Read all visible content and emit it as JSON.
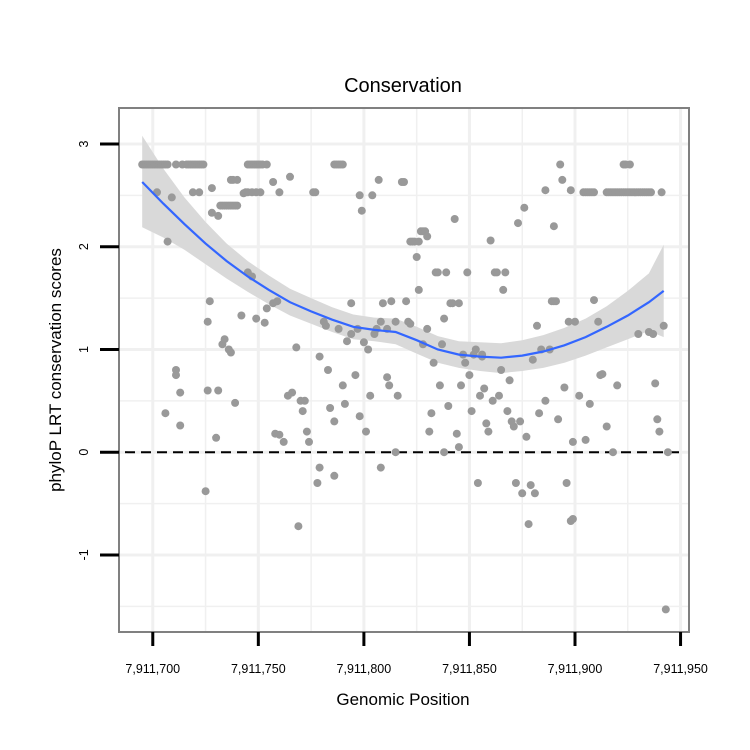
{
  "chart_data": {
    "type": "scatter",
    "title": "Conservation",
    "xlabel": "Genomic Position",
    "ylabel": "phyloP LRT conservation scores",
    "xlim": [
      7911684,
      7911954
    ],
    "ylim": [
      -1.75,
      3.35
    ],
    "xticks": [
      7911700,
      7911750,
      7911800,
      7911850,
      7911900,
      7911950
    ],
    "xtick_labels": [
      "7,911,700",
      "7,911,750",
      "7,911,800",
      "7,911,850",
      "7,911,900",
      "7,911,950"
    ],
    "yticks": [
      -1,
      0,
      1,
      2,
      3
    ],
    "ytick_labels": [
      "-1",
      "0",
      "1",
      "2",
      "3"
    ],
    "grid": true,
    "reference_line": {
      "y": 0,
      "style": "dashed"
    },
    "colors": {
      "points": "#999999",
      "smooth_line": "#3366ff",
      "ribbon": "#d9d9d9",
      "panel_border": "#808080",
      "grid": "#f0f0f0"
    },
    "points": [
      [
        7911695,
        2.8
      ],
      [
        7911696,
        2.8
      ],
      [
        7911697,
        2.8
      ],
      [
        7911698,
        2.8
      ],
      [
        7911699,
        2.8
      ],
      [
        7911700,
        2.8
      ],
      [
        7911701,
        2.8
      ],
      [
        7911702,
        2.8
      ],
      [
        7911703,
        2.8
      ],
      [
        7911704,
        2.8
      ],
      [
        7911705,
        2.8
      ],
      [
        7911706,
        2.8
      ],
      [
        7911707,
        2.8
      ],
      [
        7911702,
        2.53
      ],
      [
        7911709,
        2.48
      ],
      [
        7911707,
        2.05
      ],
      [
        7911711,
        2.8
      ],
      [
        7911714,
        2.8
      ],
      [
        7911716,
        2.8
      ],
      [
        7911717,
        2.8
      ],
      [
        7911718,
        2.8
      ],
      [
        7911719,
        2.8
      ],
      [
        7911720,
        2.8
      ],
      [
        7911721,
        2.8
      ],
      [
        7911722,
        2.8
      ],
      [
        7911723,
        2.8
      ],
      [
        7911724,
        2.8
      ],
      [
        7911719,
        2.53
      ],
      [
        7911722,
        2.53
      ],
      [
        7911728,
        2.57
      ],
      [
        7911728,
        2.33
      ],
      [
        7911731,
        2.3
      ],
      [
        7911732,
        2.4
      ],
      [
        7911733,
        2.4
      ],
      [
        7911734,
        2.4
      ],
      [
        7911735,
        2.4
      ],
      [
        7911736,
        2.4
      ],
      [
        7911737,
        2.4
      ],
      [
        7911738,
        2.4
      ],
      [
        7911739,
        2.4
      ],
      [
        7911740,
        2.4
      ],
      [
        7911737,
        2.65
      ],
      [
        7911738,
        2.65
      ],
      [
        7911740,
        2.65
      ],
      [
        7911744,
        2.53
      ],
      [
        7911745,
        2.8
      ],
      [
        7911746,
        2.8
      ],
      [
        7911747,
        2.8
      ],
      [
        7911748,
        2.8
      ],
      [
        7911749,
        2.8
      ],
      [
        7911750,
        2.8
      ],
      [
        7911751,
        2.8
      ],
      [
        7911752,
        2.8
      ],
      [
        7911754,
        2.8
      ],
      [
        7911743,
        2.52
      ],
      [
        7911745,
        2.53
      ],
      [
        7911747,
        2.53
      ],
      [
        7911749,
        2.53
      ],
      [
        7911751,
        2.53
      ],
      [
        7911757,
        2.63
      ],
      [
        7911760,
        2.53
      ],
      [
        7911706,
        0.38
      ],
      [
        7911711,
        0.8
      ],
      [
        7911711,
        0.75
      ],
      [
        7911713,
        0.26
      ],
      [
        7911713,
        0.58
      ],
      [
        7911726,
        0.6
      ],
      [
        7911726,
        1.27
      ],
      [
        7911727,
        1.47
      ],
      [
        7911725,
        -0.38
      ],
      [
        7911730,
        0.14
      ],
      [
        7911731,
        0.6
      ],
      [
        7911733,
        1.05
      ],
      [
        7911734,
        1.1
      ],
      [
        7911736,
        1.0
      ],
      [
        7911737,
        0.97
      ],
      [
        7911739,
        0.48
      ],
      [
        7911742,
        1.33
      ],
      [
        7911745,
        1.75
      ],
      [
        7911747,
        1.71
      ],
      [
        7911749,
        1.3
      ],
      [
        7911753,
        1.26
      ],
      [
        7911754,
        1.4
      ],
      [
        7911757,
        1.45
      ],
      [
        7911759,
        1.47
      ],
      [
        7911758,
        0.18
      ],
      [
        7911760,
        0.17
      ],
      [
        7911762,
        0.1
      ],
      [
        7911764,
        0.55
      ],
      [
        7911766,
        0.58
      ],
      [
        7911765,
        2.68
      ],
      [
        7911768,
        1.02
      ],
      [
        7911770,
        0.5
      ],
      [
        7911772,
        0.5
      ],
      [
        7911771,
        0.4
      ],
      [
        7911773,
        0.2
      ],
      [
        7911774,
        0.1
      ],
      [
        7911769,
        -0.72
      ],
      [
        7911776,
        2.53
      ],
      [
        7911777,
        2.53
      ],
      [
        7911778,
        -0.3
      ],
      [
        7911779,
        -0.15
      ],
      [
        7911779,
        0.93
      ],
      [
        7911781,
        1.27
      ],
      [
        7911782,
        1.23
      ],
      [
        7911783,
        0.8
      ],
      [
        7911784,
        0.43
      ],
      [
        7911786,
        0.3
      ],
      [
        7911786,
        -0.23
      ],
      [
        7911786,
        2.8
      ],
      [
        7911787,
        2.8
      ],
      [
        7911788,
        2.8
      ],
      [
        7911789,
        2.8
      ],
      [
        7911790,
        2.8
      ],
      [
        7911788,
        1.2
      ],
      [
        7911790,
        0.65
      ],
      [
        7911791,
        0.47
      ],
      [
        7911792,
        1.08
      ],
      [
        7911794,
        1.45
      ],
      [
        7911794,
        1.15
      ],
      [
        7911796,
        0.75
      ],
      [
        7911797,
        1.2
      ],
      [
        7911798,
        0.35
      ],
      [
        7911798,
        2.5
      ],
      [
        7911799,
        2.35
      ],
      [
        7911800,
        1.07
      ],
      [
        7911801,
        0.2
      ],
      [
        7911802,
        1.0
      ],
      [
        7911803,
        0.55
      ],
      [
        7911804,
        2.5
      ],
      [
        7911805,
        1.15
      ],
      [
        7911806,
        1.2
      ],
      [
        7911807,
        2.65
      ],
      [
        7911808,
        1.27
      ],
      [
        7911808,
        -0.15
      ],
      [
        7911809,
        1.45
      ],
      [
        7911811,
        1.2
      ],
      [
        7911811,
        0.73
      ],
      [
        7911812,
        0.65
      ],
      [
        7911813,
        1.47
      ],
      [
        7911815,
        0.0
      ],
      [
        7911816,
        0.55
      ],
      [
        7911815,
        1.27
      ],
      [
        7911818,
        2.63
      ],
      [
        7911819,
        2.63
      ],
      [
        7911820,
        1.47
      ],
      [
        7911821,
        1.27
      ],
      [
        7911822,
        1.25
      ],
      [
        7911822,
        2.05
      ],
      [
        7911823,
        2.05
      ],
      [
        7911824,
        2.05
      ],
      [
        7911825,
        1.9
      ],
      [
        7911826,
        2.05
      ],
      [
        7911827,
        2.15
      ],
      [
        7911828,
        2.15
      ],
      [
        7911829,
        2.15
      ],
      [
        7911830,
        2.1
      ],
      [
        7911826,
        1.58
      ],
      [
        7911828,
        1.05
      ],
      [
        7911830,
        1.2
      ],
      [
        7911831,
        0.2
      ],
      [
        7911832,
        0.38
      ],
      [
        7911833,
        0.87
      ],
      [
        7911834,
        1.75
      ],
      [
        7911835,
        1.75
      ],
      [
        7911836,
        0.65
      ],
      [
        7911837,
        1.05
      ],
      [
        7911838,
        0.0
      ],
      [
        7911839,
        1.75
      ],
      [
        7911840,
        0.45
      ],
      [
        7911841,
        1.45
      ],
      [
        7911842,
        1.45
      ],
      [
        7911843,
        2.27
      ],
      [
        7911844,
        0.18
      ],
      [
        7911845,
        0.05
      ],
      [
        7911846,
        0.65
      ],
      [
        7911847,
        0.95
      ],
      [
        7911848,
        0.87
      ],
      [
        7911849,
        1.75
      ],
      [
        7911850,
        0.75
      ],
      [
        7911851,
        0.4
      ],
      [
        7911852,
        0.95
      ],
      [
        7911853,
        1.0
      ],
      [
        7911854,
        -0.3
      ],
      [
        7911855,
        0.55
      ],
      [
        7911856,
        0.95
      ],
      [
        7911857,
        0.62
      ],
      [
        7911858,
        0.28
      ],
      [
        7911859,
        0.2
      ],
      [
        7911860,
        2.06
      ],
      [
        7911861,
        0.5
      ],
      [
        7911862,
        1.75
      ],
      [
        7911863,
        1.75
      ],
      [
        7911864,
        0.55
      ],
      [
        7911865,
        0.8
      ],
      [
        7911866,
        1.58
      ],
      [
        7911867,
        1.75
      ],
      [
        7911868,
        0.4
      ],
      [
        7911869,
        0.7
      ],
      [
        7911870,
        0.3
      ],
      [
        7911871,
        0.25
      ],
      [
        7911872,
        -0.3
      ],
      [
        7911873,
        2.23
      ],
      [
        7911874,
        0.3
      ],
      [
        7911875,
        -0.4
      ],
      [
        7911876,
        2.38
      ],
      [
        7911877,
        0.15
      ],
      [
        7911878,
        -0.7
      ],
      [
        7911879,
        -0.32
      ],
      [
        7911880,
        0.9
      ],
      [
        7911881,
        -0.4
      ],
      [
        7911882,
        1.23
      ],
      [
        7911883,
        0.38
      ],
      [
        7911884,
        1.0
      ],
      [
        7911886,
        0.5
      ],
      [
        7911888,
        1.0
      ],
      [
        7911889,
        1.47
      ],
      [
        7911890,
        1.47
      ],
      [
        7911891,
        1.47
      ],
      [
        7911892,
        0.32
      ],
      [
        7911893,
        2.8
      ],
      [
        7911895,
        0.63
      ],
      [
        7911896,
        -0.3
      ],
      [
        7911898,
        -0.67
      ],
      [
        7911899,
        -0.65
      ],
      [
        7911897,
        1.27
      ],
      [
        7911899,
        0.1
      ],
      [
        7911900,
        1.27
      ],
      [
        7911904,
        2.53
      ],
      [
        7911905,
        2.53
      ],
      [
        7911906,
        2.53
      ],
      [
        7911907,
        2.53
      ],
      [
        7911908,
        2.53
      ],
      [
        7911909,
        2.53
      ],
      [
        7911905,
        0.12
      ],
      [
        7911907,
        0.47
      ],
      [
        7911909,
        1.48
      ],
      [
        7911911,
        1.27
      ],
      [
        7911912,
        0.75
      ],
      [
        7911913,
        0.76
      ],
      [
        7911915,
        2.53
      ],
      [
        7911916,
        2.53
      ],
      [
        7911917,
        2.53
      ],
      [
        7911918,
        2.53
      ],
      [
        7911919,
        2.53
      ],
      [
        7911920,
        2.53
      ],
      [
        7911921,
        2.53
      ],
      [
        7911922,
        2.53
      ],
      [
        7911923,
        2.53
      ],
      [
        7911924,
        2.53
      ],
      [
        7911925,
        2.53
      ],
      [
        7911926,
        2.53
      ],
      [
        7911927,
        2.53
      ],
      [
        7911928,
        2.53
      ],
      [
        7911929,
        2.53
      ],
      [
        7911930,
        2.53
      ],
      [
        7911931,
        2.53
      ],
      [
        7911932,
        2.53
      ],
      [
        7911933,
        2.53
      ],
      [
        7911934,
        2.53
      ],
      [
        7911935,
        2.53
      ],
      [
        7911936,
        2.53
      ],
      [
        7911941,
        2.53
      ],
      [
        7911915,
        0.25
      ],
      [
        7911918,
        0.0
      ],
      [
        7911920,
        0.65
      ],
      [
        7911923,
        2.8
      ],
      [
        7911924,
        2.8
      ],
      [
        7911926,
        2.8
      ],
      [
        7911930,
        1.15
      ],
      [
        7911935,
        1.17
      ],
      [
        7911937,
        1.15
      ],
      [
        7911938,
        0.67
      ],
      [
        7911939,
        0.32
      ],
      [
        7911940,
        0.2
      ],
      [
        7911942,
        1.23
      ],
      [
        7911943,
        -1.53
      ],
      [
        7911944,
        0.0
      ],
      [
        7911886,
        2.55
      ],
      [
        7911890,
        2.2
      ],
      [
        7911894,
        2.65
      ],
      [
        7911898,
        2.55
      ],
      [
        7911902,
        0.55
      ],
      [
        7911856,
        0.93
      ],
      [
        7911845,
        1.45
      ],
      [
        7911838,
        1.3
      ]
    ],
    "smooth_line": {
      "x": [
        7911695,
        7911705,
        7911715,
        7911725,
        7911735,
        7911745,
        7911755,
        7911765,
        7911775,
        7911785,
        7911795,
        7911805,
        7911815,
        7911825,
        7911835,
        7911845,
        7911855,
        7911865,
        7911875,
        7911885,
        7911895,
        7911905,
        7911915,
        7911925,
        7911935,
        7911942
      ],
      "y": [
        2.63,
        2.42,
        2.22,
        2.03,
        1.86,
        1.71,
        1.58,
        1.46,
        1.37,
        1.29,
        1.22,
        1.19,
        1.17,
        1.09,
        1.0,
        0.95,
        0.93,
        0.92,
        0.94,
        0.98,
        1.04,
        1.12,
        1.22,
        1.33,
        1.46,
        1.57
      ]
    },
    "confidence_band": {
      "lower": [
        2.19,
        2.09,
        1.97,
        1.83,
        1.69,
        1.56,
        1.44,
        1.33,
        1.25,
        1.17,
        1.1,
        1.08,
        1.05,
        0.96,
        0.87,
        0.82,
        0.79,
        0.77,
        0.79,
        0.82,
        0.87,
        0.94,
        1.02,
        1.1,
        1.18,
        1.12
      ],
      "upper": [
        3.08,
        2.76,
        2.48,
        2.24,
        2.03,
        1.86,
        1.72,
        1.59,
        1.5,
        1.41,
        1.34,
        1.31,
        1.3,
        1.22,
        1.13,
        1.08,
        1.07,
        1.06,
        1.09,
        1.14,
        1.21,
        1.3,
        1.42,
        1.57,
        1.74,
        2.02
      ]
    }
  }
}
